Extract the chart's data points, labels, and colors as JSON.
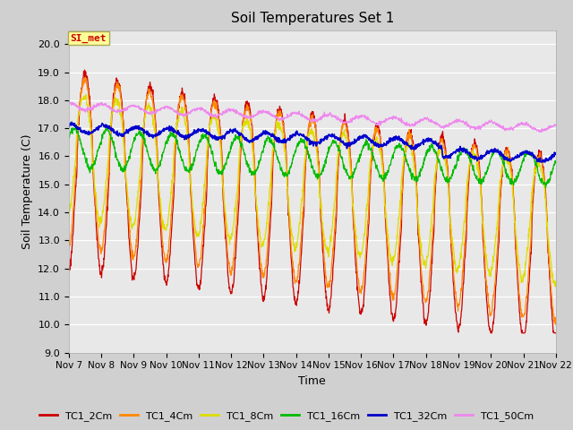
{
  "title": "Soil Temperatures Set 1",
  "xlabel": "Time",
  "ylabel": "Soil Temperature (C)",
  "ylim": [
    9.0,
    20.5
  ],
  "yticks": [
    9.0,
    10.0,
    11.0,
    12.0,
    13.0,
    14.0,
    15.0,
    16.0,
    17.0,
    18.0,
    19.0,
    20.0
  ],
  "colors": {
    "TC1_2Cm": "#cc0000",
    "TC1_4Cm": "#ff8800",
    "TC1_8Cm": "#dddd00",
    "TC1_16Cm": "#00bb00",
    "TC1_32Cm": "#0000cc",
    "TC1_50Cm": "#ee88ee"
  },
  "annotation_text": "SI_met",
  "annotation_box_color": "#ffff99",
  "annotation_text_color": "#cc0000",
  "x_start": 7,
  "x_end": 22,
  "xtick_positions": [
    7,
    8,
    9,
    10,
    11,
    12,
    13,
    14,
    15,
    16,
    17,
    18,
    19,
    20,
    21,
    22
  ],
  "xtick_labels": [
    "Nov 7",
    "Nov 8",
    "Nov 9",
    "Nov 10",
    "Nov 11",
    "Nov 12",
    "Nov 13",
    "Nov 14",
    "Nov 15",
    "Nov 16",
    "Nov 17",
    "Nov 18",
    "Nov 19",
    "Nov 20",
    "Nov 21",
    "Nov 22"
  ]
}
